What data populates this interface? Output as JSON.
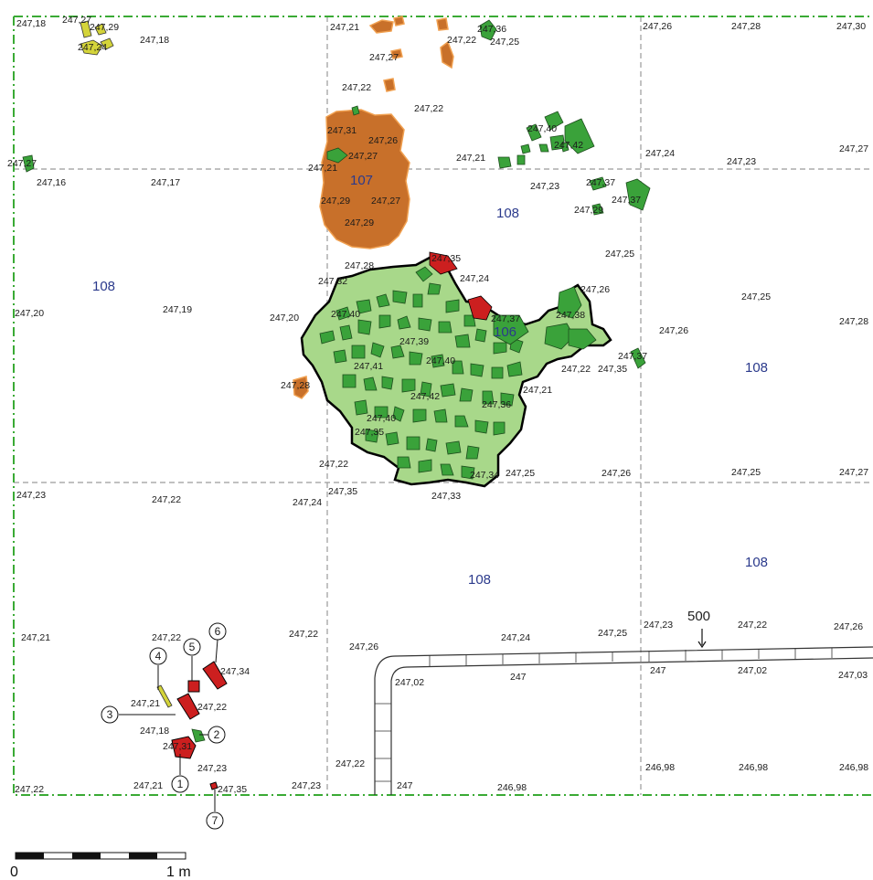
{
  "elevations": {
    "e1": "247,18",
    "e2": "247,27",
    "e3": "247,29",
    "e4": "247,24",
    "e5": "247,18",
    "e6": "247,21",
    "e7": "247,36",
    "e8": "247,22",
    "e9": "247,25",
    "e10": "247,27",
    "e11": "247,22",
    "e12": "247,22",
    "e13": "247,26",
    "e14": "247,28",
    "e15": "247,30",
    "e16": "247,40",
    "e17": "247,42",
    "e18": "247,31",
    "e19": "247,26",
    "e20": "247,27",
    "e21": "247,21",
    "e22": "247,21",
    "e23": "247,24",
    "e24": "247,23",
    "e25": "247,27",
    "e26": "247,27",
    "e27": "247,16",
    "e28": "247,17",
    "e29": "247,23",
    "e30": "247,37",
    "e31": "247,37",
    "e32": "247,29",
    "e33": "247,29",
    "e34": "247,27",
    "e35": "247,29",
    "e36": "247,25",
    "e37": "247,35",
    "e38": "247,24",
    "e39": "247,28",
    "e40": "247,32",
    "e41": "247,26",
    "e42": "247,25",
    "e43": "247,20",
    "e44": "247,19",
    "e45": "247,20",
    "e46": "247,40",
    "e47": "247,37",
    "e48": "247,38",
    "e49": "247,39",
    "e50": "247,26",
    "e51": "247,28",
    "e52": "247,41",
    "e53": "247,40",
    "e54": "247,37",
    "e55": "247,22",
    "e56": "247,35",
    "e57": "247,28",
    "e58": "247,21",
    "e59": "247,42",
    "e60": "247,36",
    "e61": "247,40",
    "e62": "247,35",
    "e63": "247,22",
    "e64": "247,34",
    "e65": "247,25",
    "e66": "247,26",
    "e67": "247,25",
    "e68": "247,27",
    "e69": "247,23",
    "e70": "247,22",
    "e71": "247,24",
    "e72": "247,35",
    "e73": "247,33",
    "e74": "247,21",
    "e75": "247,22",
    "e76": "247,22",
    "e77": "247,26",
    "e78": "247,24",
    "e79": "247,25",
    "e80": "247,23",
    "e81": "247,22",
    "e82": "247,26",
    "e83": "247,22",
    "e84": "247,34",
    "e85": "247,02",
    "e86": "247",
    "e87": "247",
    "e88": "247,02",
    "e89": "247,03",
    "e90": "247,21",
    "e91": "247,22",
    "e92": "247,18",
    "e93": "247,31",
    "e94": "247,23",
    "e95": "247,22",
    "e96": "247,21",
    "e97": "247,35",
    "e98": "247,22",
    "e99": "247,23",
    "e100": "247",
    "e101": "246,98",
    "e102": "246,98",
    "e103": "246,98",
    "e104": "246,98",
    "e105": "247,22"
  },
  "contexts": {
    "c107": "107",
    "c108a": "108",
    "c108b": "108",
    "c108c": "108",
    "c108d": "108",
    "c108e": "108",
    "c106": "106",
    "c500": "500"
  },
  "finds": [
    "1",
    "2",
    "3",
    "4",
    "5",
    "6",
    "7"
  ],
  "scale_bar": {
    "left_label": "0",
    "right_label": "1 m"
  },
  "colors": {
    "stone_green": "#3aa23a",
    "spread_light": "#a8d88a",
    "orange": "#c8702a",
    "red": "#cc1f1f",
    "yellow": "#d4d43a",
    "frame": "#3aaa35",
    "grid": "#9a9a9a",
    "context_label": "#2b3a8c"
  }
}
